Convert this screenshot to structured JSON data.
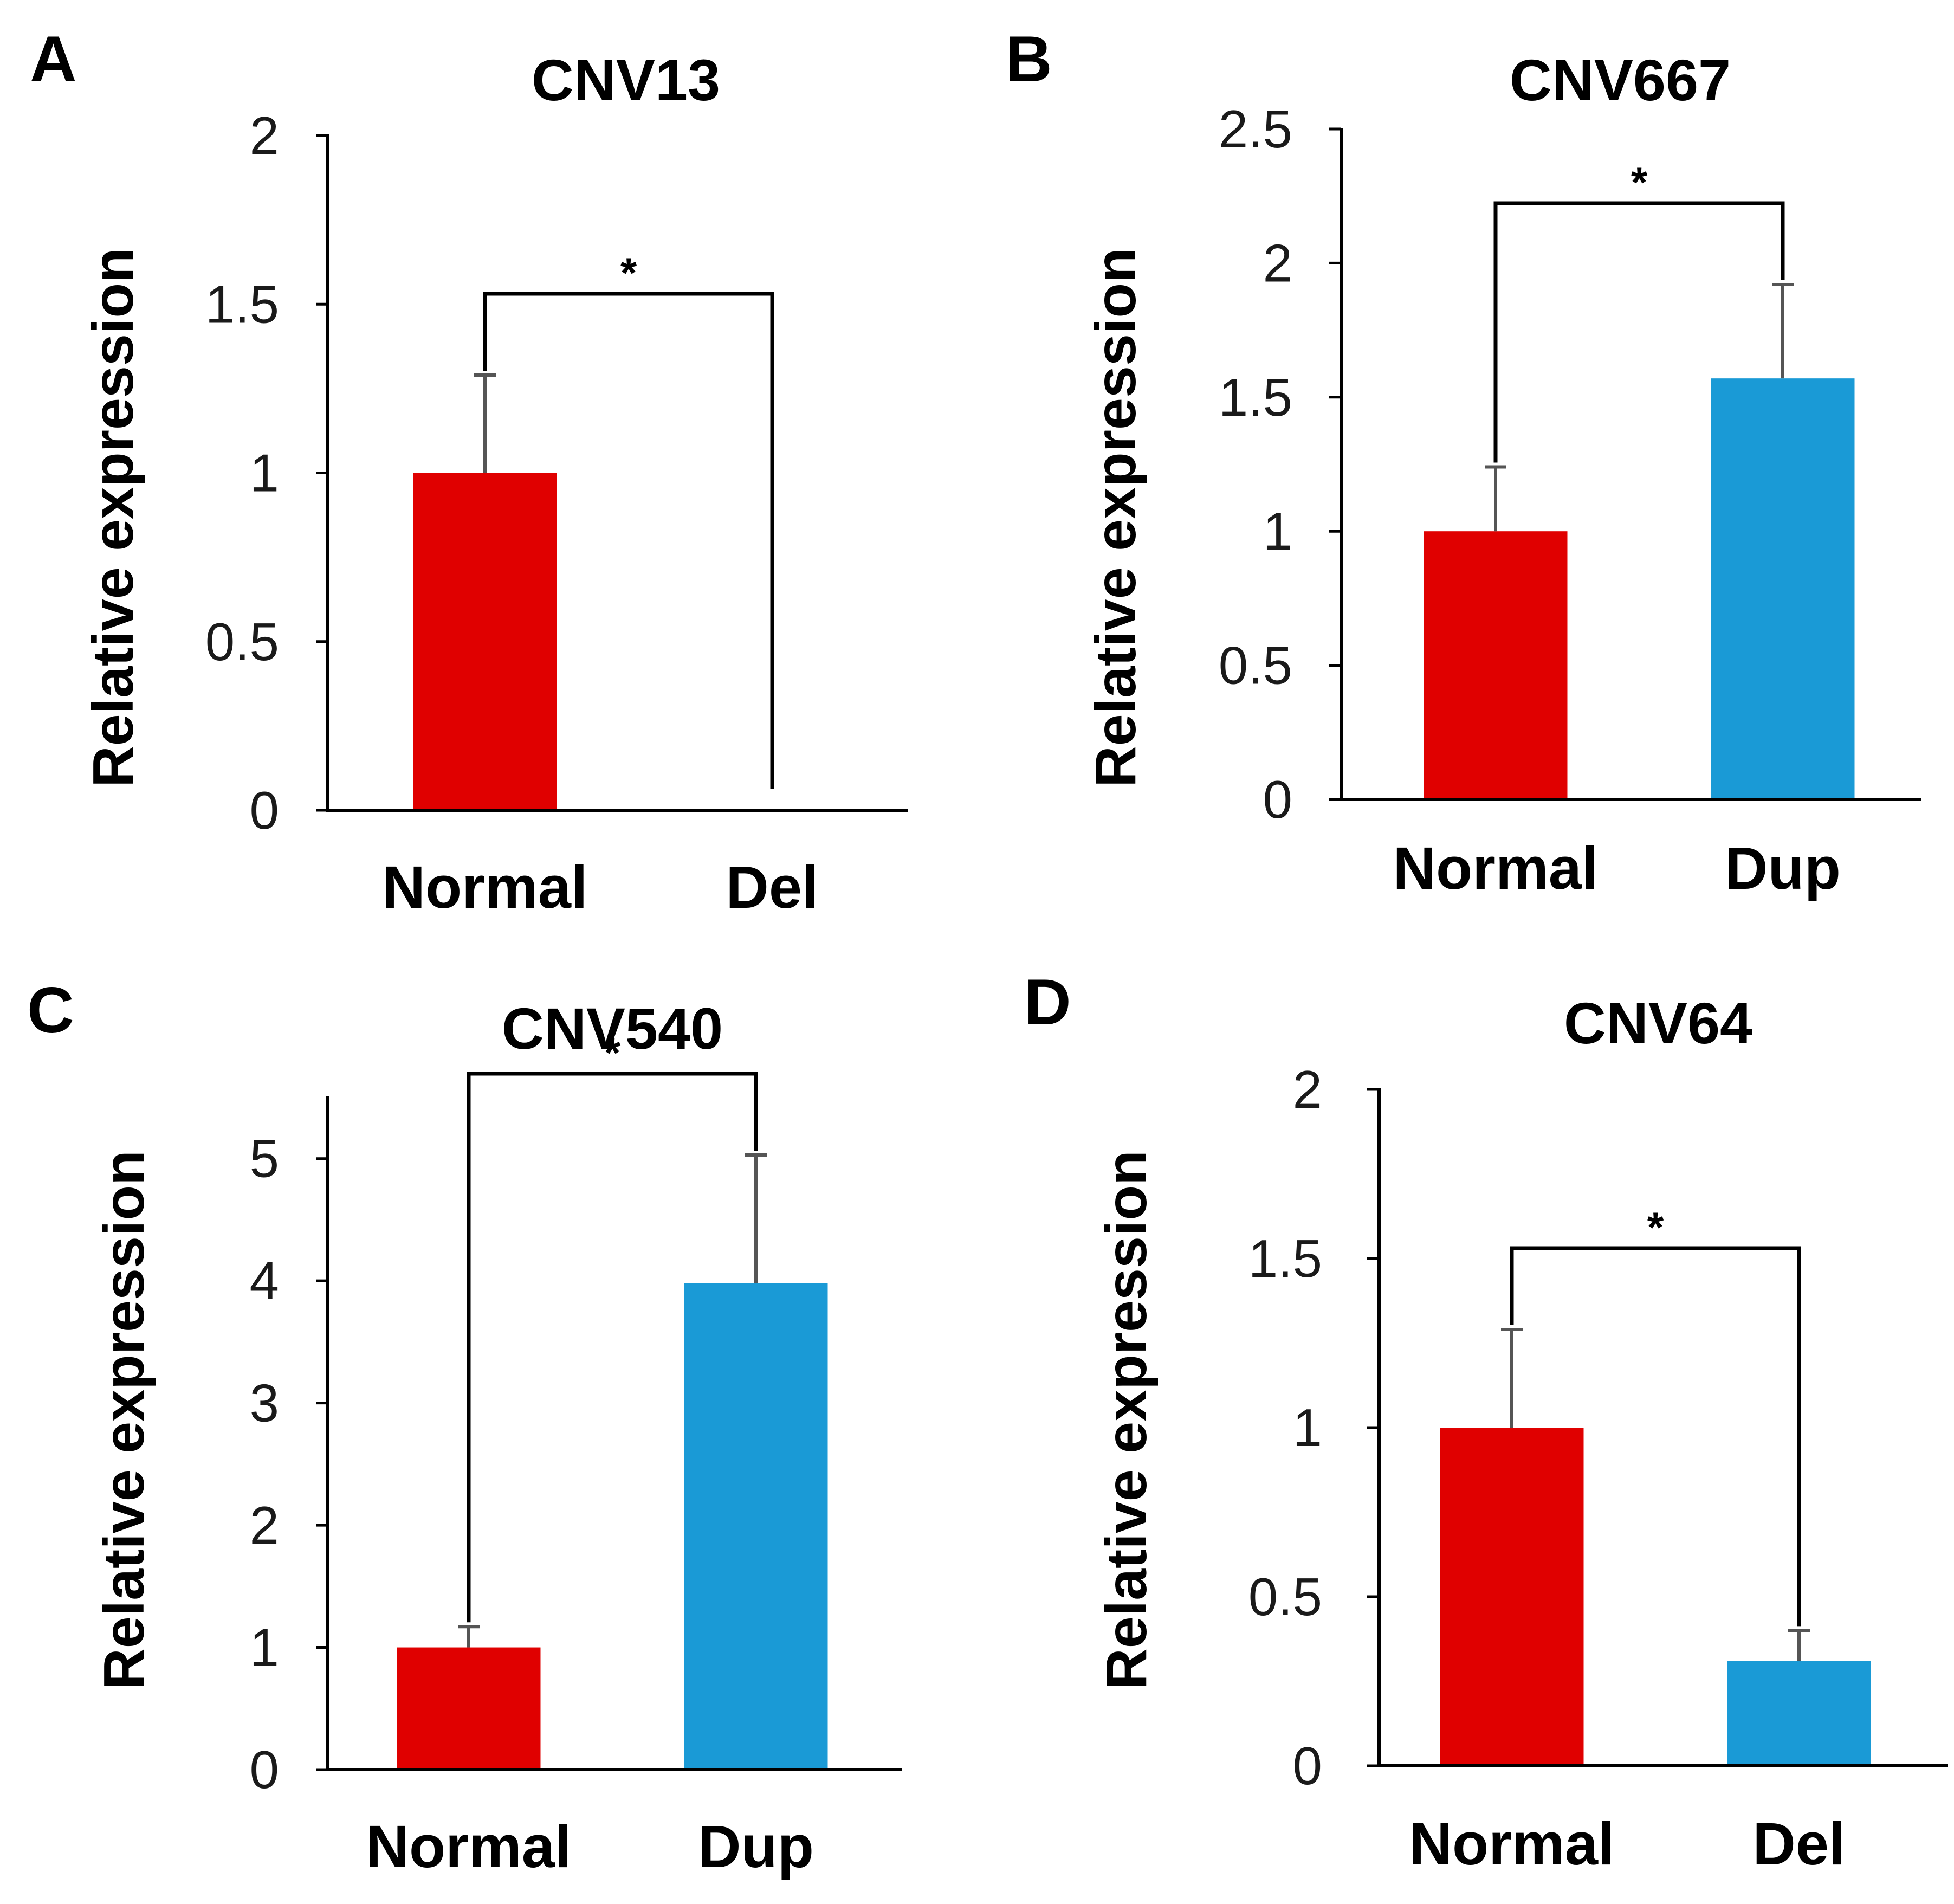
{
  "chart_data": [
    {
      "panel": "A",
      "title": "CNV13",
      "type": "bar",
      "ylabel": "Relative expression",
      "xlabel": "",
      "ylim": [
        0,
        2
      ],
      "yticks": [
        "0",
        "0.5",
        "1",
        "1.5",
        "2"
      ],
      "categories": [
        "Normal",
        "Del"
      ],
      "values": [
        1.0,
        0.0
      ],
      "errors": [
        0.29,
        0.0
      ],
      "colors": [
        "#e00000",
        "#1a9ad6"
      ],
      "significance": "*"
    },
    {
      "panel": "B",
      "title": "CNV667",
      "type": "bar",
      "ylabel": "Relative expression",
      "xlabel": "",
      "ylim": [
        0,
        2.5
      ],
      "yticks": [
        "0",
        "0.5",
        "1",
        "1.5",
        "2",
        "2.5"
      ],
      "categories": [
        "Normal",
        "Dup"
      ],
      "values": [
        1.0,
        1.57
      ],
      "errors": [
        0.24,
        0.35
      ],
      "colors": [
        "#e00000",
        "#1a9ad6"
      ],
      "significance": "*"
    },
    {
      "panel": "C",
      "title": "CNV540",
      "type": "bar",
      "ylabel": "Relative expression",
      "xlabel": "",
      "ylim": [
        0,
        5.5
      ],
      "yticks": [
        "0",
        "1",
        "2",
        "3",
        "4",
        "5"
      ],
      "categories": [
        "Normal",
        "Dup"
      ],
      "values": [
        1.0,
        3.98
      ],
      "errors": [
        0.17,
        1.05
      ],
      "colors": [
        "#e00000",
        "#1a9ad6"
      ],
      "significance": "*"
    },
    {
      "panel": "D",
      "title": "CNV64",
      "type": "bar",
      "ylabel": "Relative expression",
      "xlabel": "",
      "ylim": [
        0,
        2
      ],
      "yticks": [
        "0",
        "0.5",
        "1",
        "1.5",
        "2"
      ],
      "categories": [
        "Normal",
        "Del"
      ],
      "values": [
        1.0,
        0.31
      ],
      "errors": [
        0.29,
        0.09
      ],
      "colors": [
        "#e00000",
        "#1a9ad6"
      ],
      "significance": "*"
    }
  ]
}
